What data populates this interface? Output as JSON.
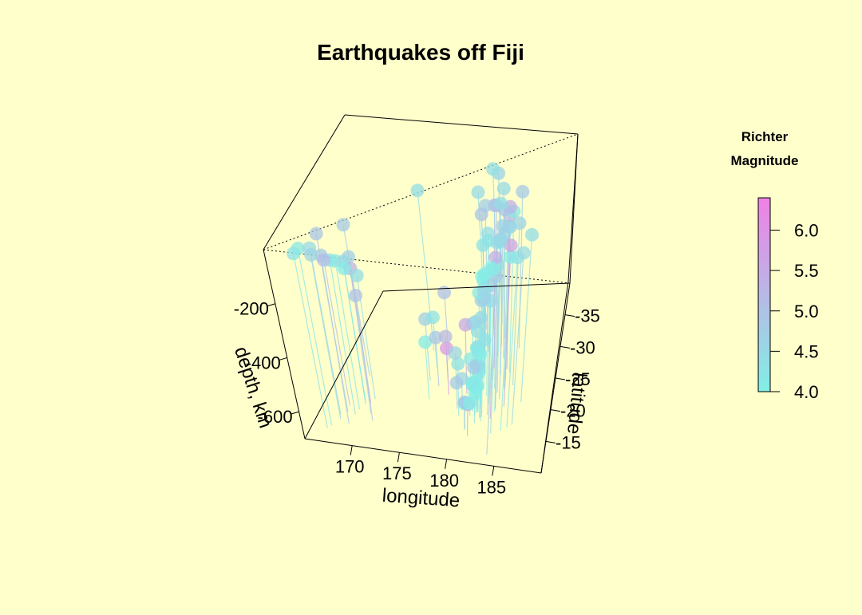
{
  "chart_data": {
    "type": "scatter",
    "projection": "3d",
    "title": "Earthquakes off Fiji",
    "xlabel": "longitude",
    "ylabel": "latitude",
    "zlabel": "depth, km",
    "xlim": [
      165,
      190
    ],
    "ylim": [
      -40,
      -10
    ],
    "zlim": [
      -700,
      0
    ],
    "x_ticks": [
      170,
      175,
      180,
      185
    ],
    "y_ticks": [
      -15,
      -20,
      -25,
      -30,
      -35
    ],
    "z_ticks": [
      -200,
      -400,
      -600
    ],
    "grid": false,
    "drop_lines": true,
    "colorbar": {
      "title_line1": "Richter",
      "title_line2": "Magnitude",
      "range": [
        4.0,
        6.4
      ],
      "ticks": [
        "6.0",
        "5.5",
        "5.0",
        "4.5",
        "4.0"
      ],
      "color_low": "#80F0E6",
      "color_high": "#F080E6"
    },
    "points": [
      [
        181.6,
        -20.4,
        -560,
        4.8
      ],
      [
        181.0,
        -20.6,
        -640,
        4.2
      ],
      [
        184.1,
        -26.0,
        -40,
        5.4
      ],
      [
        181.7,
        -18.0,
        -620,
        4.1
      ],
      [
        181.4,
        -20.4,
        -650,
        4.0
      ],
      [
        182.1,
        -19.7,
        -200,
        4.0
      ],
      [
        184.0,
        -11.7,
        -40,
        4.8
      ],
      [
        181.7,
        -28.1,
        -200,
        4.4
      ],
      [
        181.4,
        -28.7,
        -100,
        4.7
      ],
      [
        180.0,
        -17.5,
        -500,
        4.3
      ],
      [
        184.2,
        -23.0,
        -60,
        4.5
      ],
      [
        180.2,
        -18.6,
        -580,
        4.6
      ],
      [
        182.8,
        -21.5,
        -200,
        4.0
      ],
      [
        181.0,
        -15.3,
        -600,
        4.1
      ],
      [
        168.5,
        -23.3,
        -120,
        4.8
      ],
      [
        183.2,
        -22.6,
        -120,
        4.5
      ],
      [
        181.3,
        -19.0,
        -600,
        4.0
      ],
      [
        181.0,
        -23.0,
        -450,
        4.6
      ],
      [
        182.0,
        -22.3,
        -300,
        4.2
      ],
      [
        182.5,
        -21.3,
        -90,
        4.1
      ],
      [
        181.0,
        -19.5,
        -520,
        4.2
      ],
      [
        184.4,
        -22.5,
        -50,
        4.7
      ],
      [
        181.0,
        -15.5,
        -600,
        4.9
      ],
      [
        182.0,
        -18.5,
        -550,
        4.2
      ],
      [
        181.8,
        -18.3,
        -450,
        4.1
      ],
      [
        182.9,
        -20.1,
        -300,
        4.5
      ],
      [
        181.6,
        -20.4,
        -490,
        4.4
      ],
      [
        181.0,
        -21.6,
        -600,
        4.8
      ],
      [
        181.7,
        -25.0,
        -300,
        4.1
      ],
      [
        181.7,
        -19.7,
        -550,
        4.3
      ],
      [
        183.5,
        -25.0,
        -100,
        4.7
      ],
      [
        181.2,
        -17.7,
        -650,
        4.1
      ],
      [
        183.8,
        -18.8,
        -40,
        4.1
      ],
      [
        181.6,
        -25.2,
        -400,
        4.7
      ],
      [
        181.4,
        -18.5,
        -600,
        4.2
      ],
      [
        181.6,
        -21.4,
        -590,
        4.3
      ],
      [
        184.2,
        -24.3,
        -40,
        5.1
      ],
      [
        182.5,
        -17.8,
        -250,
        4.5
      ],
      [
        182.6,
        -26.0,
        -40,
        5.2
      ],
      [
        181.9,
        -18.5,
        -600,
        4.2
      ],
      [
        181.5,
        -14.3,
        -580,
        5.3
      ],
      [
        186.0,
        -17.0,
        -40,
        4.5
      ],
      [
        182.5,
        -17.0,
        -160,
        4.3
      ],
      [
        183.8,
        -19.3,
        -40,
        5.0
      ],
      [
        180.2,
        -21.4,
        -430,
        5.5
      ],
      [
        181.0,
        -25.6,
        -390,
        4.2
      ],
      [
        179.6,
        -18.7,
        -600,
        4.8
      ],
      [
        181.1,
        -20.3,
        -400,
        4.3
      ],
      [
        183.5,
        -17.6,
        -80,
        5.4
      ],
      [
        182.1,
        -19.2,
        -350,
        4.5
      ],
      [
        184.0,
        -21.0,
        -50,
        4.6
      ],
      [
        181.3,
        -22.8,
        -560,
        4.2
      ],
      [
        185.5,
        -16.5,
        -50,
        4.3
      ],
      [
        181.9,
        -20.5,
        -520,
        4.0
      ],
      [
        182.3,
        -17.6,
        -250,
        4.8
      ],
      [
        184.9,
        -15.9,
        -40,
        4.1
      ],
      [
        181.7,
        -24.8,
        -560,
        4.3
      ],
      [
        183.6,
        -22.0,
        -100,
        4.5
      ],
      [
        181.8,
        -19.0,
        -400,
        4.4
      ],
      [
        182.6,
        -28.0,
        -80,
        5.0
      ],
      [
        169.5,
        -17.9,
        -160,
        4.5
      ],
      [
        171.0,
        -15.0,
        -230,
        5.0
      ],
      [
        167.0,
        -13.2,
        -40,
        4.2
      ],
      [
        170.5,
        -16.3,
        -110,
        4.7
      ],
      [
        167.6,
        -14.6,
        -60,
        4.5
      ],
      [
        169.3,
        -18.6,
        -200,
        4.1
      ],
      [
        168.0,
        -16.1,
        -30,
        4.9
      ],
      [
        166.7,
        -12.6,
        -50,
        4.3
      ],
      [
        170.0,
        -18.2,
        -190,
        5.3
      ],
      [
        167.4,
        -15.4,
        -100,
        4.6
      ],
      [
        169.1,
        -16.8,
        -140,
        4.2
      ],
      [
        168.7,
        -13.9,
        -70,
        4.8
      ],
      [
        170.3,
        -19.0,
        -230,
        4.4
      ],
      [
        167.9,
        -17.3,
        -150,
        5.1
      ],
      [
        168.9,
        -15.8,
        -120,
        4.3
      ],
      [
        176.2,
        -19.9,
        -480,
        4.1
      ],
      [
        176.8,
        -22.3,
        -510,
        4.9
      ],
      [
        177.5,
        -24.0,
        -540,
        5.2
      ],
      [
        175.9,
        -25.5,
        -500,
        4.3
      ],
      [
        178.2,
        -21.0,
        -520,
        5.8
      ],
      [
        178.9,
        -22.1,
        -560,
        4.6
      ],
      [
        174.8,
        -28.6,
        -60,
        4.4
      ],
      [
        177.0,
        -27.0,
        -430,
        5.0
      ],
      [
        175.6,
        -23.2,
        -460,
        4.7
      ],
      [
        186.5,
        -20.8,
        -40,
        4.4
      ],
      [
        185.2,
        -23.4,
        -50,
        4.6
      ],
      [
        183.0,
        -31.0,
        -70,
        4.5
      ],
      [
        182.2,
        -33.5,
        -60,
        4.6
      ],
      [
        181.4,
        -35.2,
        -80,
        4.4
      ],
      [
        185.0,
        -29.5,
        -45,
        4.8
      ],
      [
        184.7,
        -19.8,
        -70,
        5.6
      ],
      [
        183.9,
        -15.2,
        -60,
        4.4
      ],
      [
        182.7,
        -24.1,
        -260,
        4.2
      ],
      [
        181.3,
        -27.2,
        -420,
        4.6
      ],
      [
        180.8,
        -30.4,
        -300,
        4.3
      ],
      [
        180.4,
        -32.6,
        -220,
        4.9
      ],
      [
        179.9,
        -34.1,
        -160,
        4.5
      ],
      [
        183.1,
        -18.2,
        -200,
        4.7
      ],
      [
        181.9,
        -16.6,
        -560,
        4.3
      ],
      [
        183.4,
        -27.8,
        -90,
        4.9
      ],
      [
        184.5,
        -25.4,
        -45,
        4.2
      ],
      [
        182.8,
        -29.9,
        -110,
        4.4
      ]
    ]
  }
}
